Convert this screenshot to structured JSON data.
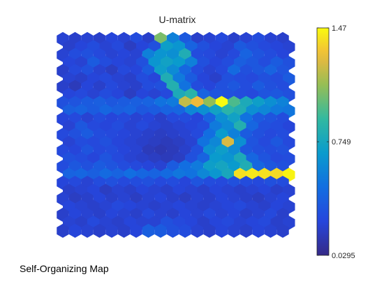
{
  "window": {
    "footer_label": "Self-Organizing Map"
  },
  "chart_data": {
    "type": "heatmap",
    "subtype": "hexagonal-u-matrix",
    "title": "U-matrix",
    "xlabel": "",
    "ylabel": "",
    "grid": false,
    "colormap": "parula",
    "rows": 25,
    "cols": 19,
    "colorbar": {
      "min": 0.0295,
      "max": 1.47,
      "ticks": [
        1.47,
        0.749,
        0.0295
      ],
      "tick_labels": [
        "1.47",
        "0.749",
        "0.0295"
      ],
      "placement": "right"
    },
    "values": [
      [
        0.22,
        0.2,
        0.22,
        0.2,
        0.24,
        0.22,
        0.28,
        0.2,
        1.05,
        0.55,
        0.35,
        0.2,
        0.22,
        0.26,
        0.2,
        0.22,
        0.28,
        0.22,
        0.2
      ],
      [
        0.2,
        0.24,
        0.28,
        0.22,
        0.26,
        0.18,
        0.24,
        0.3,
        0.7,
        0.65,
        0.4,
        0.3,
        0.24,
        0.22,
        0.35,
        0.3,
        0.26,
        0.24,
        0.22
      ],
      [
        0.22,
        0.28,
        0.3,
        0.26,
        0.22,
        0.24,
        0.22,
        0.55,
        0.65,
        0.62,
        0.8,
        0.28,
        0.26,
        0.22,
        0.26,
        0.4,
        0.32,
        0.28,
        0.24
      ],
      [
        0.24,
        0.22,
        0.36,
        0.28,
        0.24,
        0.22,
        0.3,
        0.65,
        0.72,
        0.68,
        0.55,
        0.3,
        0.24,
        0.28,
        0.38,
        0.34,
        0.28,
        0.36,
        0.3
      ],
      [
        0.2,
        0.26,
        0.3,
        0.22,
        0.18,
        0.26,
        0.24,
        0.36,
        0.7,
        0.6,
        0.42,
        0.28,
        0.22,
        0.26,
        0.44,
        0.3,
        0.34,
        0.4,
        0.32
      ],
      [
        0.22,
        0.2,
        0.24,
        0.26,
        0.22,
        0.2,
        0.28,
        0.24,
        0.8,
        0.52,
        0.36,
        0.24,
        0.2,
        0.3,
        0.28,
        0.26,
        0.3,
        0.28,
        0.36
      ],
      [
        0.2,
        0.16,
        0.24,
        0.2,
        0.26,
        0.22,
        0.2,
        0.28,
        0.3,
        0.82,
        0.48,
        0.28,
        0.24,
        0.3,
        0.34,
        0.28,
        0.36,
        0.3,
        0.28
      ],
      [
        0.24,
        0.26,
        0.22,
        0.28,
        0.24,
        0.18,
        0.24,
        0.22,
        0.26,
        0.78,
        0.85,
        0.4,
        0.32,
        0.3,
        0.28,
        0.26,
        0.32,
        0.34,
        0.3
      ],
      [
        0.3,
        0.32,
        0.36,
        0.38,
        0.34,
        0.36,
        0.38,
        0.4,
        0.48,
        0.52,
        1.2,
        1.3,
        1.1,
        1.47,
        0.95,
        0.78,
        0.7,
        0.62,
        0.56
      ],
      [
        0.38,
        0.4,
        0.36,
        0.42,
        0.38,
        0.4,
        0.34,
        0.36,
        0.4,
        0.42,
        0.58,
        0.62,
        0.72,
        0.85,
        0.8,
        0.62,
        0.58,
        0.52,
        0.5
      ],
      [
        0.24,
        0.26,
        0.22,
        0.28,
        0.24,
        0.26,
        0.22,
        0.24,
        0.2,
        0.26,
        0.28,
        0.24,
        0.4,
        0.62,
        0.72,
        0.48,
        0.36,
        0.32,
        0.28
      ],
      [
        0.22,
        0.34,
        0.26,
        0.24,
        0.28,
        0.22,
        0.26,
        0.22,
        0.2,
        0.22,
        0.24,
        0.28,
        0.52,
        0.6,
        0.82,
        0.42,
        0.3,
        0.28,
        0.24
      ],
      [
        0.26,
        0.3,
        0.36,
        0.28,
        0.26,
        0.24,
        0.22,
        0.2,
        0.18,
        0.2,
        0.22,
        0.26,
        0.46,
        0.68,
        0.55,
        0.36,
        0.3,
        0.26,
        0.28
      ],
      [
        0.22,
        0.28,
        0.26,
        0.3,
        0.24,
        0.22,
        0.2,
        0.18,
        0.16,
        0.18,
        0.22,
        0.48,
        0.58,
        1.25,
        0.62,
        0.32,
        0.26,
        0.34,
        0.26
      ],
      [
        0.26,
        0.24,
        0.32,
        0.26,
        0.28,
        0.24,
        0.22,
        0.16,
        0.14,
        0.16,
        0.2,
        0.3,
        0.62,
        0.7,
        0.6,
        0.34,
        0.3,
        0.28,
        0.3
      ],
      [
        0.3,
        0.28,
        0.24,
        0.32,
        0.26,
        0.22,
        0.2,
        0.18,
        0.16,
        0.18,
        0.3,
        0.4,
        0.68,
        0.65,
        0.78,
        0.42,
        0.32,
        0.26,
        0.28
      ],
      [
        0.28,
        0.34,
        0.3,
        0.36,
        0.32,
        0.28,
        0.26,
        0.24,
        0.22,
        0.36,
        0.46,
        0.52,
        0.7,
        0.74,
        0.68,
        0.8,
        0.42,
        0.34,
        0.3
      ],
      [
        0.4,
        0.42,
        0.38,
        0.44,
        0.4,
        0.46,
        0.42,
        0.4,
        0.44,
        0.5,
        0.48,
        0.58,
        0.66,
        0.76,
        1.4,
        1.42,
        1.4,
        1.38,
        1.45
      ],
      [
        0.24,
        0.26,
        0.22,
        0.28,
        0.3,
        0.26,
        0.28,
        0.3,
        0.26,
        0.28,
        0.24,
        0.32,
        0.28,
        0.26,
        0.3,
        0.28,
        0.26,
        0.3,
        0.28
      ],
      [
        0.2,
        0.22,
        0.24,
        0.18,
        0.22,
        0.2,
        0.24,
        0.22,
        0.2,
        0.24,
        0.22,
        0.2,
        0.24,
        0.22,
        0.2,
        0.22,
        0.24,
        0.2,
        0.22
      ],
      [
        0.22,
        0.18,
        0.2,
        0.24,
        0.2,
        0.22,
        0.18,
        0.22,
        0.24,
        0.2,
        0.18,
        0.22,
        0.2,
        0.24,
        0.22,
        0.2,
        0.18,
        0.22,
        0.24
      ],
      [
        0.24,
        0.22,
        0.2,
        0.22,
        0.26,
        0.24,
        0.22,
        0.2,
        0.22,
        0.24,
        0.22,
        0.2,
        0.22,
        0.24,
        0.26,
        0.22,
        0.2,
        0.24,
        0.22
      ],
      [
        0.2,
        0.24,
        0.22,
        0.2,
        0.24,
        0.22,
        0.2,
        0.26,
        0.22,
        0.2,
        0.24,
        0.22,
        0.26,
        0.22,
        0.24,
        0.2,
        0.22,
        0.26,
        0.2
      ],
      [
        0.22,
        0.2,
        0.26,
        0.22,
        0.2,
        0.24,
        0.22,
        0.22,
        0.3,
        0.26,
        0.24,
        0.2,
        0.24,
        0.26,
        0.22,
        0.24,
        0.26,
        0.2,
        0.22
      ],
      [
        0.2,
        0.24,
        0.22,
        0.2,
        0.22,
        0.2,
        0.24,
        0.38,
        0.36,
        0.3,
        0.28,
        0.22,
        0.2,
        0.24,
        0.22,
        0.2,
        0.24,
        0.22,
        0.2
      ]
    ]
  }
}
